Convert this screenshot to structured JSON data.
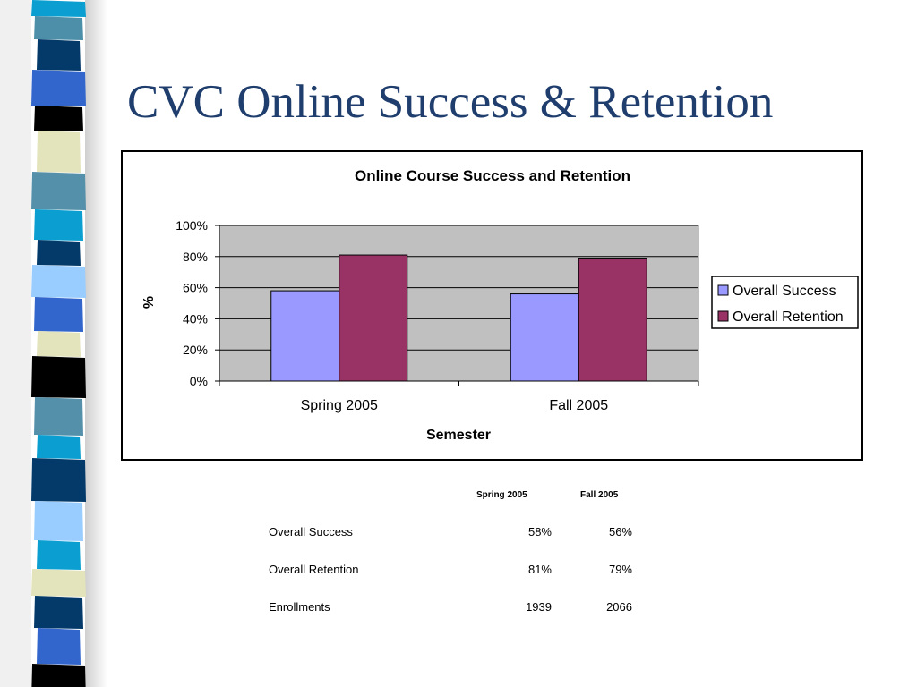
{
  "slide": {
    "title": "CVC Online Success & Retention"
  },
  "colors": {
    "title": "#1f3e6e",
    "plot_background": "#c0c0c0",
    "success_bar": "#9999ff",
    "retention_bar": "#993366"
  },
  "chart_data": {
    "type": "bar",
    "title": "Online Course Success and Retention",
    "xlabel": "Semester",
    "ylabel": "%",
    "categories": [
      "Spring 2005",
      "Fall 2005"
    ],
    "series": [
      {
        "name": "Overall Success",
        "values": [
          58,
          56
        ],
        "color": "#9999ff"
      },
      {
        "name": "Overall Retention",
        "values": [
          81,
          79
        ],
        "color": "#993366"
      }
    ],
    "ylim": [
      0,
      100
    ],
    "yticks": [
      "0%",
      "20%",
      "40%",
      "60%",
      "80%",
      "100%"
    ],
    "grid": true,
    "legend": "right"
  },
  "table": {
    "headers": [
      "Spring 2005",
      "Fall 2005"
    ],
    "rows": [
      {
        "label": "Overall Success",
        "values": [
          "58%",
          "56%"
        ]
      },
      {
        "label": "Overall Retention",
        "values": [
          "81%",
          "79%"
        ]
      },
      {
        "label": "Enrollments",
        "values": [
          "1939",
          "2066"
        ]
      }
    ]
  }
}
